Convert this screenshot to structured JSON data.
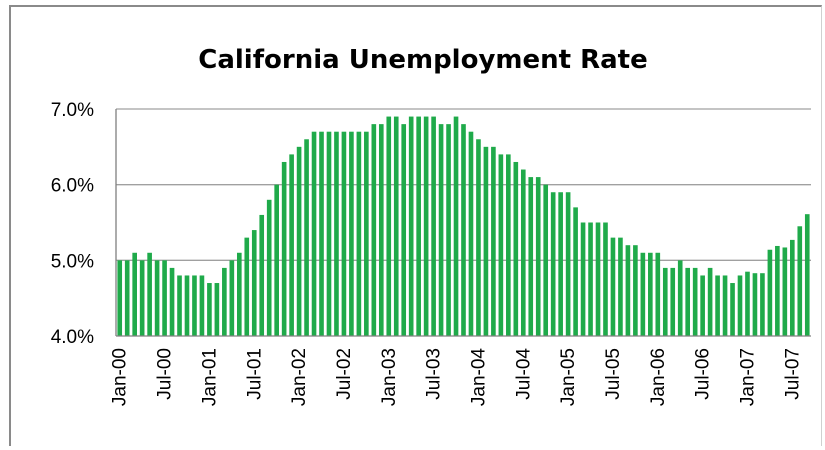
{
  "chart_data": {
    "type": "bar",
    "title": "California Unemployment Rate",
    "xlabel": "",
    "ylabel": "",
    "ylim": [
      4.0,
      7.0
    ],
    "y_ticks": [
      "4.0%",
      "5.0%",
      "6.0%",
      "7.0%"
    ],
    "y_tick_values": [
      4.0,
      5.0,
      6.0,
      7.0
    ],
    "grid": true,
    "legend": "none",
    "colors": {
      "bar": "#1faa4a",
      "grid": "#a0a0a0",
      "axis": "#808080"
    },
    "x_tick_labels": [
      "Jan-00",
      "Jul-00",
      "Jan-01",
      "Jul-01",
      "Jan-02",
      "Jul-02",
      "Jan-03",
      "Jul-03",
      "Jan-04",
      "Jul-04",
      "Jan-05",
      "Jul-05",
      "Jan-06",
      "Jul-06",
      "Jan-07",
      "Jul-07"
    ],
    "x_tick_every": 6,
    "values": [
      5.0,
      5.0,
      5.1,
      5.0,
      5.1,
      5.0,
      5.0,
      4.9,
      4.8,
      4.8,
      4.8,
      4.8,
      4.7,
      4.7,
      4.9,
      5.0,
      5.1,
      5.3,
      5.4,
      5.6,
      5.8,
      6.0,
      6.3,
      6.4,
      6.5,
      6.6,
      6.7,
      6.7,
      6.7,
      6.7,
      6.7,
      6.7,
      6.7,
      6.7,
      6.8,
      6.8,
      6.9,
      6.9,
      6.8,
      6.9,
      6.9,
      6.9,
      6.9,
      6.8,
      6.8,
      6.9,
      6.8,
      6.7,
      6.6,
      6.5,
      6.5,
      6.4,
      6.4,
      6.3,
      6.2,
      6.1,
      6.1,
      6.0,
      5.9,
      5.9,
      5.9,
      5.7,
      5.5,
      5.5,
      5.5,
      5.5,
      5.3,
      5.3,
      5.2,
      5.2,
      5.1,
      5.1,
      5.1,
      4.9,
      4.9,
      5.0,
      4.9,
      4.9,
      4.8,
      4.9,
      4.8,
      4.8,
      4.7,
      4.8,
      4.85,
      4.83,
      4.83,
      5.14,
      5.19,
      5.17,
      5.27,
      5.45,
      5.61
    ]
  }
}
